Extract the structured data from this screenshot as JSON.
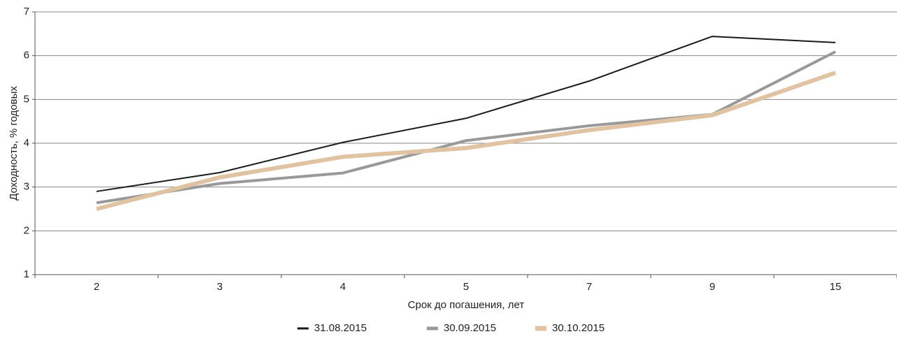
{
  "chart_data": {
    "type": "line",
    "categories": [
      "2",
      "3",
      "4",
      "5",
      "7",
      "9",
      "15"
    ],
    "x_label": "Срок до погашения, лет",
    "y_label": "Доходность, % годовых",
    "ylim": [
      1,
      7
    ],
    "yticks": [
      1,
      2,
      3,
      4,
      5,
      6,
      7
    ],
    "grid": true,
    "legend": "bottom",
    "series": [
      {
        "name": "31.08.2015",
        "color": "#1a1a1a",
        "values": [
          2.9,
          3.33,
          4.02,
          4.57,
          5.42,
          6.44,
          6.3
        ]
      },
      {
        "name": "30.09.2015",
        "color": "#999999",
        "values": [
          2.64,
          3.08,
          3.32,
          4.06,
          4.4,
          4.66,
          6.09
        ]
      },
      {
        "name": "30.10.2015",
        "color": "#e0c3a3",
        "values": [
          2.5,
          3.22,
          3.69,
          3.89,
          4.3,
          4.64,
          5.61
        ]
      }
    ]
  }
}
